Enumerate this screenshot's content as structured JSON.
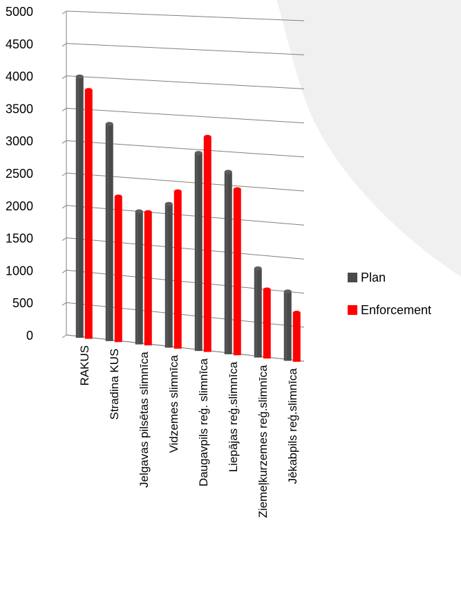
{
  "chart_data": {
    "type": "bar",
    "view": "3d-perspective",
    "categories": [
      "RAKUS",
      "Stradina KUS",
      "Jelgavas pilsētas slimnīca",
      "Vidzemes slimnīca",
      "Daugavpils reģ. slimnīca",
      "Liepājas reģ.slimnīca",
      "Ziemeļkurzemes reģ.slimnīca",
      "Jēkabpils reģ.slimnīca"
    ],
    "series": [
      {
        "name": "Plan",
        "color": "#4a4a4a",
        "values": [
          4000,
          3300,
          2000,
          2150,
          2950,
          2700,
          1300,
          1000
        ]
      },
      {
        "name": "Enforcement",
        "color": "#ff0000",
        "values": [
          3800,
          2200,
          2000,
          2350,
          3200,
          2450,
          1000,
          700
        ]
      }
    ],
    "ylim": [
      0,
      5000
    ],
    "yticks": [
      "0",
      "500",
      "1000",
      "1500",
      "2000",
      "2500",
      "3000",
      "3500",
      "4000",
      "4500",
      "5000"
    ],
    "grid": true,
    "legend": "right",
    "background_colors": {
      "wall": "#f0f0f0",
      "page": "#ffffff"
    }
  }
}
